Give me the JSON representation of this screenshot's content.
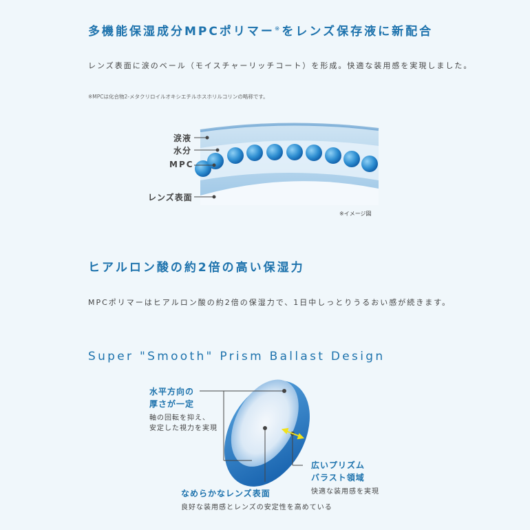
{
  "section1": {
    "title_a": "多機能保湿成分MPCポリマー",
    "title_mark": "※",
    "title_b": "をレンズ保存液に新配合",
    "body": "レンズ表面に涙のベール（モイスチャーリッチコート）を形成。快適な装用感を実現しました。",
    "note": "※MPCは化合物2-メタクリロイルオキシエチルホスホリルコリンの略称です。",
    "diagram": {
      "labels": [
        "涙液",
        "水分",
        "MPC",
        "レンズ表面"
      ],
      "caption": "※イメージ図"
    }
  },
  "section2": {
    "title": "ヒアルロン酸の約2倍の高い保湿力",
    "body": "MPCポリマーはヒアルロン酸の約2倍の保湿力で、1日中しっとりうるおい感が続きます。"
  },
  "section3": {
    "title": "Super \"Smooth\" Prism Ballast Design",
    "callouts": [
      {
        "title1": "水平方向の",
        "title2": "厚さが一定",
        "desc1": "軸の回転を抑え、",
        "desc2": "安定した視力を実現"
      },
      {
        "title1": "広いプリズム",
        "title2": "バラスト領域",
        "desc1": "快適な装用感を実現"
      },
      {
        "title1": "なめらかなレンズ表面",
        "desc1": "良好な装用感とレンズの安定性を高めている"
      }
    ]
  },
  "colors": {
    "accent": "#1e73ad",
    "background": "#f0f7fb",
    "arrow": "#f2e21a"
  }
}
